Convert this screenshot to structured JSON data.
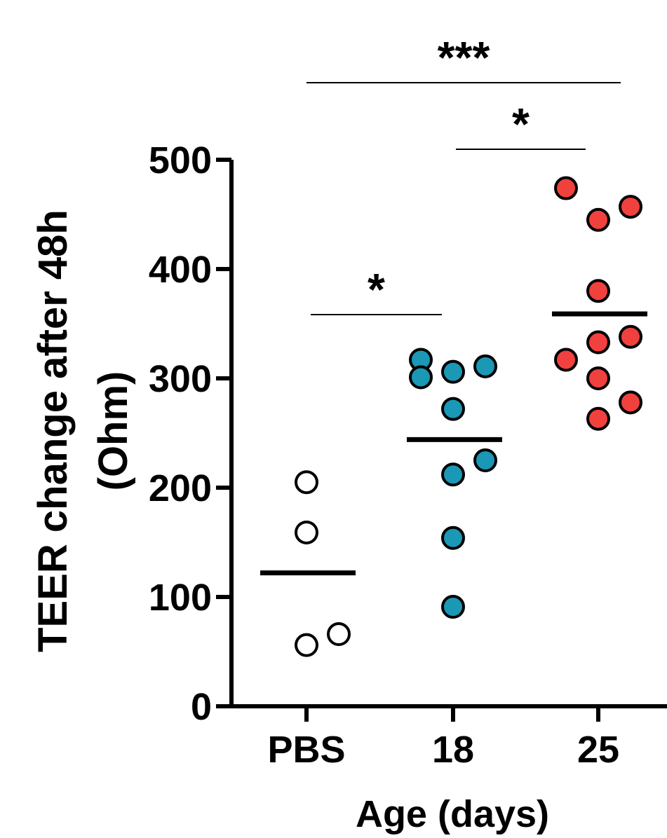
{
  "chart_data": {
    "type": "scatter",
    "title": "",
    "xlabel": "Age (days)",
    "ylabel_line1": "TEER change after 48h",
    "ylabel_line2": "(Ohm)",
    "ylim": [
      0,
      500
    ],
    "yticks": [
      0,
      100,
      200,
      300,
      400,
      500
    ],
    "ytick_labels": [
      "0",
      "100",
      "200",
      "300",
      "400",
      "500"
    ],
    "categories": [
      "PBS",
      "18",
      "25"
    ],
    "grid": false,
    "legend": "none",
    "series": [
      {
        "category": "PBS",
        "color": "#ffffff",
        "points": [
          {
            "offset": 0,
            "value": 205
          },
          {
            "offset": 0,
            "value": 159
          },
          {
            "offset": 0,
            "value": 56
          },
          {
            "offset": 1,
            "value": 66
          }
        ],
        "mean": 122
      },
      {
        "category": "18",
        "color": "#1a98b5",
        "points": [
          {
            "offset": -1,
            "value": 317
          },
          {
            "offset": -1,
            "value": 301
          },
          {
            "offset": 0,
            "value": 306
          },
          {
            "offset": 1,
            "value": 311
          },
          {
            "offset": 0,
            "value": 272
          },
          {
            "offset": 1,
            "value": 225
          },
          {
            "offset": 0,
            "value": 212
          },
          {
            "offset": 0,
            "value": 154
          },
          {
            "offset": 0,
            "value": 91
          }
        ],
        "mean": 244
      },
      {
        "category": "25",
        "color": "#f0413f",
        "points": [
          {
            "offset": -1,
            "value": 474
          },
          {
            "offset": 1,
            "value": 457
          },
          {
            "offset": 0,
            "value": 445
          },
          {
            "offset": 0,
            "value": 380
          },
          {
            "offset": 1,
            "value": 338
          },
          {
            "offset": 0,
            "value": 333
          },
          {
            "offset": -1,
            "value": 317
          },
          {
            "offset": 0,
            "value": 300
          },
          {
            "offset": 1,
            "value": 278
          },
          {
            "offset": 0,
            "value": 263
          }
        ],
        "mean": 359
      }
    ],
    "significance": [
      {
        "from": "PBS",
        "to": "25",
        "label": "***",
        "level": "top"
      },
      {
        "from": "18",
        "to": "25",
        "label": "*",
        "level": "middle"
      },
      {
        "from": "PBS",
        "to": "18",
        "label": "*",
        "level": "low"
      }
    ]
  }
}
